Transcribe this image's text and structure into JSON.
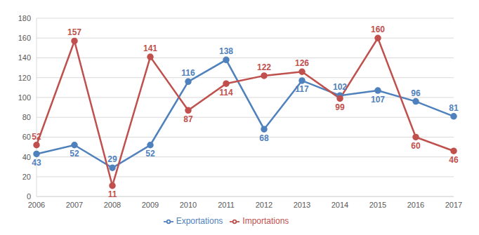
{
  "chart_data": {
    "type": "line",
    "categories": [
      "2006",
      "2007",
      "2008",
      "2009",
      "2010",
      "2011",
      "2012",
      "2013",
      "2014",
      "2015",
      "2016",
      "2017"
    ],
    "series": [
      {
        "name": "Exportations",
        "color": "#4f81bd",
        "marker": "circle",
        "values": [
          43,
          52,
          29,
          52,
          116,
          138,
          68,
          117,
          102,
          107,
          96,
          81
        ]
      },
      {
        "name": "Importations",
        "color": "#c0504d",
        "marker": "circle",
        "values": [
          52,
          157,
          11,
          141,
          87,
          114,
          122,
          126,
          99,
          160,
          60,
          46
        ]
      }
    ],
    "ylim": [
      0,
      180
    ],
    "yticks": [
      0,
      20,
      40,
      60,
      80,
      100,
      120,
      140,
      160,
      180
    ],
    "grid": true,
    "legend": "bottom",
    "data_labels": true
  }
}
